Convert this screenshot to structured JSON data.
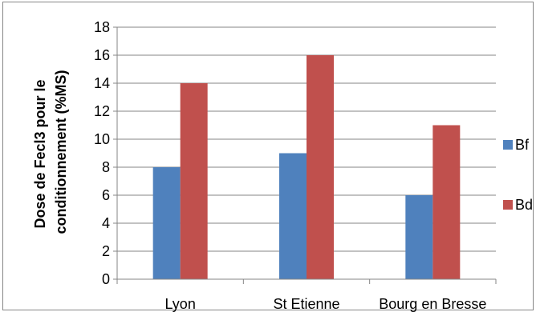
{
  "chart_data": {
    "type": "bar",
    "categories": [
      "Lyon",
      "St Etienne",
      "Bourg en Bresse"
    ],
    "series": [
      {
        "name": "Bf",
        "values": [
          8,
          9,
          6
        ],
        "color": "#4f81bd"
      },
      {
        "name": "Bd",
        "values": [
          14,
          16,
          11
        ],
        "color": "#c0504d"
      }
    ],
    "ylabel_lines": [
      "Dose de Fecl3 pour le",
      "conditionnement (%MS)"
    ],
    "ylim": [
      0,
      18
    ],
    "yticks": [
      0,
      2,
      4,
      6,
      8,
      10,
      12,
      14,
      16,
      18
    ],
    "grid": true,
    "legend_position": "right"
  }
}
